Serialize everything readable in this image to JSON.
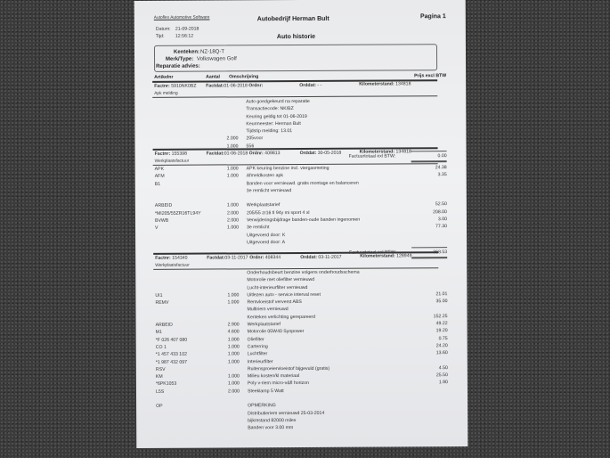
{
  "software": "Autoflex Automotive Software",
  "company": "Autobedrijf Herman Bult",
  "page": "Pagina 1",
  "datum_label": "Datum:",
  "datum": "21-09-2018",
  "tijd_label": "Tijd:",
  "tijd": "12:56:12",
  "title": "Auto historie",
  "vehicle": {
    "kenteken_label": "Kenteken:",
    "kenteken": "NZ-18Q-T",
    "merk_label": "Merk/Type:",
    "merk": "Volkswagen Golf",
    "advies_label": "Reparatie advies:"
  },
  "columns": {
    "artikel": "Artikelnr",
    "aantal": "Aantal",
    "omschrijving": "Omschrijving",
    "prijs": "Prijs excl BTW"
  },
  "labels": {
    "factnr": "Factnr:",
    "factdat": "Factdat:",
    "ordnr": "Ordnr:",
    "orddat": "Orddat:",
    "km": "Kilometerstand:",
    "total": "Factuurtotaal exl BTW:"
  },
  "invoices": [
    {
      "factnr": "5910NK0BZ",
      "factdat": "01-06-2018",
      "ordnr": "",
      "orddat": "- -",
      "km": "134818",
      "type": "Apk melding",
      "total": "0.00",
      "rows": [
        {
          "code": "",
          "qty": "",
          "desc": "Auto goedgekeurd na reparatie",
          "amt": ""
        },
        {
          "code": "",
          "qty": "",
          "desc": "Transactiecode: NK/BZ",
          "amt": ""
        },
        {
          "code": "",
          "qty": "",
          "desc": "Keuring geldig tot 01-06-2019",
          "amt": ""
        },
        {
          "code": "",
          "qty": "",
          "desc": "Keurmeester: Herman Bult",
          "amt": ""
        },
        {
          "code": "",
          "qty": "",
          "desc": "Tijdstip melding: 13.01",
          "amt": ""
        },
        {
          "code": "",
          "qty": "2.000",
          "desc": "205voor",
          "amt": ""
        },
        {
          "code": "",
          "qty": "1.000",
          "desc": "556",
          "amt": ""
        }
      ]
    },
    {
      "factnr": "155398",
      "factdat": "01-06-2018",
      "ordnr": "409813",
      "orddat": "30-05-2018",
      "km": "134818",
      "type": "Werkplaatsfactuur",
      "total": "368.53",
      "rows": [
        {
          "code": "APK",
          "qty": "1.000",
          "desc": "APK keuring benzine incl. viergasmeting",
          "amt": "24.38"
        },
        {
          "code": "AFM",
          "qty": "1.000",
          "desc": "Afmeldkosten apk",
          "amt": "3.35"
        },
        {
          "code": "B1",
          "qty": "",
          "desc": "Banden voor vernieuwd. gratis montage en balanceren",
          "amt": ""
        },
        {
          "code": "",
          "qty": "",
          "desc": "3e remlicht vernieuwd",
          "amt": ""
        },
        {
          "code": "",
          "qty": "",
          "desc": "",
          "amt": ""
        },
        {
          "code": "ARBEID",
          "qty": "1.000",
          "desc": "Werkplaatstarief",
          "amt": "52.50"
        },
        {
          "code": "*MI205/55ZR16TL94Y",
          "qty": "2.000",
          "desc": "205/55 zr16 tl 94y  mi sport 4 xl",
          "amt": "208.00"
        },
        {
          "code": "BVWB",
          "qty": "2.000",
          "desc": "Verwijderingsbijdrage banden-oude banden ingenomen",
          "amt": "3.00"
        },
        {
          "code": "V",
          "qty": "1.000",
          "desc": "3e remlicht",
          "amt": "77.30"
        },
        {
          "code": "",
          "qty": "",
          "desc": "Uitgevoerd door: K",
          "amt": ""
        },
        {
          "code": "",
          "qty": "",
          "desc": "Uitgevoerd door: A",
          "amt": ""
        }
      ]
    },
    {
      "factnr": "154340",
      "factdat": "03-11-2017",
      "ordnr": "408344",
      "orddat": "03-11-2017",
      "km": "128949",
      "type": "Werkplaatsfactuur",
      "rows": [
        {
          "code": "",
          "qty": "",
          "desc": "Onderhoudsbeurt benzine volgens onderhoudsschema",
          "amt": ""
        },
        {
          "code": "",
          "qty": "",
          "desc": "Motorolie met oliefilter vernieuwd",
          "amt": ""
        },
        {
          "code": "",
          "qty": "",
          "desc": "Lucht-interieurfilter vernieuwd",
          "amt": ""
        },
        {
          "code": "UI1",
          "qty": "1.000",
          "desc": "Uitlezen auto - service interval reset",
          "amt": "21.01"
        },
        {
          "code": "REMV",
          "qty": "1.000",
          "desc": "Remvloeistof ververst ABS",
          "amt": "35.00"
        },
        {
          "code": "",
          "qty": "",
          "desc": "Multiriem vernieuwd",
          "amt": ""
        },
        {
          "code": "",
          "qty": "",
          "desc": "Kenteken verlichting gerepareerd",
          "amt": "152.25"
        },
        {
          "code": "ARBEID",
          "qty": "2.900",
          "desc": "Werkplaatstarief",
          "amt": "49.22"
        },
        {
          "code": "M1",
          "qty": "4.600",
          "desc": "Motorolie 05W40 Synpower",
          "amt": "19.20"
        },
        {
          "code": "*F 026 407 080",
          "qty": "1.000",
          "desc": "Oliefilter",
          "amt": "0.75"
        },
        {
          "code": "CO 1",
          "qty": "1.000",
          "desc": "Carterring",
          "amt": "24.20"
        },
        {
          "code": "*1 457 433 102",
          "qty": "1.000",
          "desc": "Luchtfilter",
          "amt": "13.60"
        },
        {
          "code": "*1 987 432 097",
          "qty": "1.000",
          "desc": "Interieurfilter",
          "amt": ""
        },
        {
          "code": "RSV",
          "qty": "",
          "desc": "Ruitensproeiervloeistof bijgevuld (gratis)",
          "amt": "4.50"
        },
        {
          "code": "KM",
          "qty": "1.000",
          "desc": "Milieu kosten/kl materiaal",
          "amt": "25.50"
        },
        {
          "code": "*6PK1053",
          "qty": "1.000",
          "desc": "Poly v-riem micro-v&fl horizon",
          "amt": "1.90"
        },
        {
          "code": "L5S",
          "qty": "2.000",
          "desc": "Steeklamp 5 Watt",
          "amt": ""
        },
        {
          "code": "",
          "qty": "",
          "desc": "",
          "amt": ""
        },
        {
          "code": "OP",
          "qty": "",
          "desc": "OPMERKING",
          "amt": ""
        },
        {
          "code": "",
          "qty": "",
          "desc": "Distributieriem vernieuwd 25-03-2014",
          "amt": ""
        },
        {
          "code": "",
          "qty": "",
          "desc": "bijkmstand 82000 miles",
          "amt": ""
        },
        {
          "code": "",
          "qty": "",
          "desc": "Banden voor 3.00 mm",
          "amt": ""
        }
      ]
    }
  ]
}
